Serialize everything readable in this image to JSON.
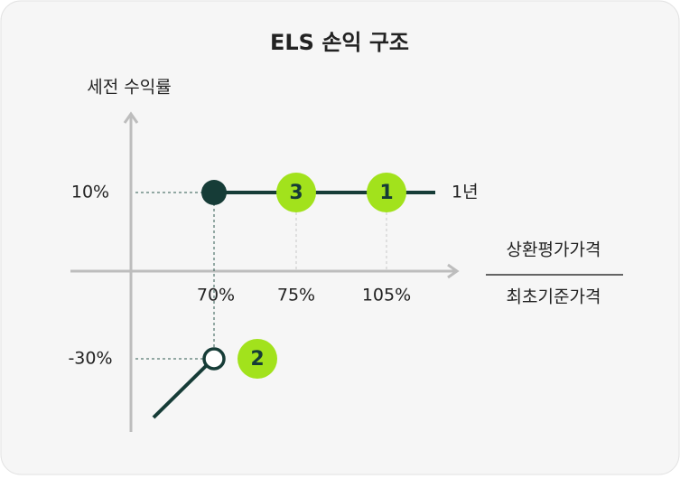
{
  "title": "ELS 손익 구조",
  "y_axis": {
    "label": "세전 수익률",
    "tick_labels": [
      "10%",
      "-30%"
    ]
  },
  "x_axis": {
    "tick_labels": [
      "70%",
      "75%",
      "105%"
    ],
    "label": {
      "numerator": "상환평가가격",
      "denominator": "최초기준가격"
    }
  },
  "markers": [
    "3",
    "1",
    "2"
  ],
  "period": "1년"
}
